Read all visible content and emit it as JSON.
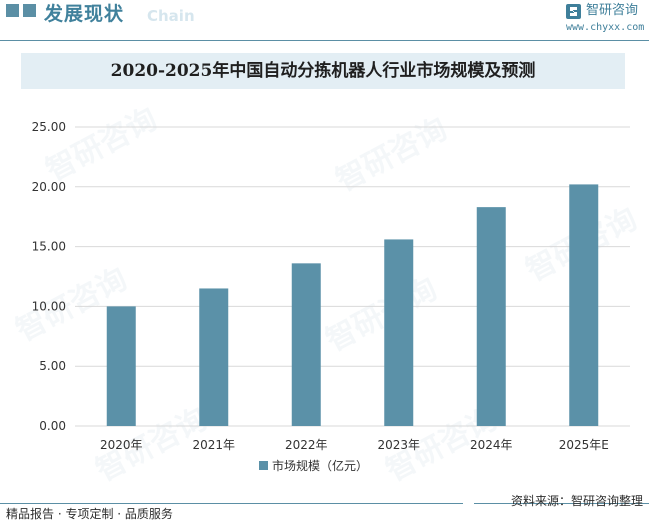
{
  "header": {
    "title": "发展现状",
    "subtitle_en": "Chain",
    "logo_name": "智研咨询",
    "logo_url": "www.chyxx.com"
  },
  "watermark": {
    "text": "智研咨询"
  },
  "footer": {
    "left": "精品报告 · 专项定制 · 品质服务",
    "source": "资料来源：智研咨询整理"
  },
  "colors": {
    "bar": "#5b91a8",
    "accent": "#40819c",
    "title_bg": "#e3eef4",
    "grid": "#d9d9d9"
  },
  "chart_data": {
    "type": "bar",
    "title": "2020-2025年中国自动分拣机器人行业市场规模及预测",
    "categories": [
      "2020年",
      "2021年",
      "2022年",
      "2023年",
      "2024年",
      "2025年E"
    ],
    "series": [
      {
        "name": "市场规模（亿元）",
        "values": [
          10.0,
          11.5,
          13.6,
          15.6,
          18.3,
          20.2
        ]
      }
    ],
    "ylim": [
      0,
      25
    ],
    "yticks": [
      "0.00",
      "5.00",
      "10.00",
      "15.00",
      "20.00",
      "25.00"
    ],
    "grid": true,
    "legend_position": "bottom"
  }
}
